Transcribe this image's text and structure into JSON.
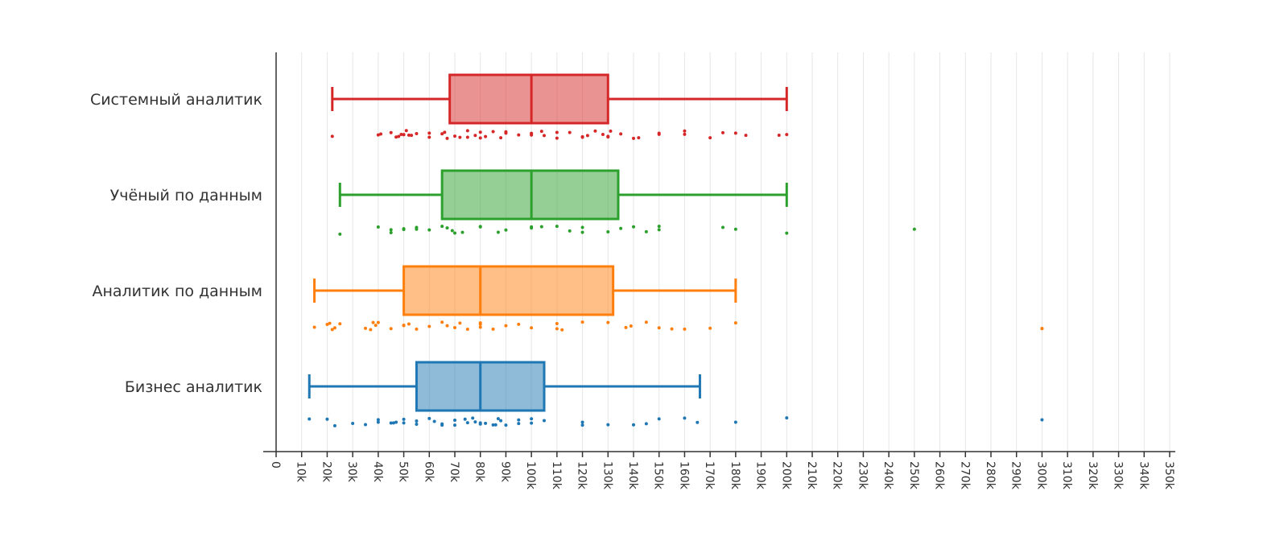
{
  "chart_data": {
    "type": "box",
    "orientation": "horizontal",
    "title": "",
    "xlabel": "",
    "ylabel": "",
    "xlim": [
      0,
      350000
    ],
    "x_ticks": [
      0,
      10000,
      20000,
      30000,
      40000,
      50000,
      60000,
      70000,
      80000,
      90000,
      100000,
      110000,
      120000,
      130000,
      140000,
      150000,
      160000,
      170000,
      180000,
      190000,
      200000,
      210000,
      220000,
      230000,
      240000,
      250000,
      260000,
      270000,
      280000,
      290000,
      300000,
      310000,
      320000,
      330000,
      340000,
      350000
    ],
    "x_tick_labels": [
      "0",
      "10k",
      "20k",
      "30k",
      "40k",
      "50k",
      "60k",
      "70k",
      "80k",
      "90k",
      "100k",
      "110k",
      "120k",
      "130k",
      "140k",
      "150k",
      "160k",
      "170k",
      "180k",
      "190k",
      "200k",
      "210k",
      "220k",
      "230k",
      "240k",
      "250k",
      "260k",
      "270k",
      "280k",
      "290k",
      "300k",
      "310k",
      "320k",
      "330k",
      "340k",
      "350k"
    ],
    "grid": "vertical",
    "series": [
      {
        "name": "Системный аналитик",
        "color": "#d62728",
        "whisker_low": 22000,
        "q1": 68000,
        "median": 100000,
        "q3": 130000,
        "whisker_high": 200000,
        "points": [
          22000,
          40000,
          41000,
          45000,
          47000,
          48000,
          49000,
          50000,
          50000,
          51000,
          52000,
          53000,
          55000,
          60000,
          60000,
          65000,
          66000,
          67000,
          70000,
          72000,
          75000,
          75000,
          78000,
          80000,
          80000,
          82000,
          85000,
          88000,
          90000,
          90000,
          95000,
          100000,
          100000,
          100000,
          104000,
          105000,
          110000,
          110000,
          115000,
          120000,
          120000,
          122000,
          125000,
          128000,
          130000,
          130000,
          131000,
          135000,
          140000,
          142000,
          150000,
          150000,
          160000,
          160000,
          170000,
          175000,
          180000,
          184000,
          197000,
          200000
        ]
      },
      {
        "name": "Учёный по данным",
        "color": "#2ca02c",
        "whisker_low": 25000,
        "q1": 65000,
        "median": 100000,
        "q3": 134000,
        "whisker_high": 200000,
        "points": [
          25000,
          40000,
          45000,
          45000,
          50000,
          50000,
          55000,
          55000,
          60000,
          65000,
          67000,
          69000,
          70000,
          73000,
          80000,
          80000,
          87000,
          90000,
          100000,
          100000,
          104000,
          110000,
          115000,
          120000,
          120000,
          130000,
          135000,
          140000,
          145000,
          150000,
          150000,
          175000,
          180000,
          200000,
          250000
        ]
      },
      {
        "name": "Аналитик по данным",
        "color": "#ff7f0e",
        "whisker_low": 15000,
        "q1": 50000,
        "median": 80000,
        "q3": 132000,
        "whisker_high": 180000,
        "points": [
          15000,
          20000,
          21000,
          22000,
          23000,
          25000,
          35000,
          37000,
          38000,
          39000,
          40000,
          45000,
          50000,
          50000,
          52000,
          55000,
          60000,
          65000,
          67000,
          70000,
          72000,
          75000,
          80000,
          80000,
          80000,
          85000,
          90000,
          95000,
          100000,
          110000,
          110000,
          112000,
          120000,
          130000,
          137000,
          139000,
          145000,
          150000,
          155000,
          160000,
          170000,
          180000,
          300000,
          300000
        ]
      },
      {
        "name": "Бизнес аналитик",
        "color": "#1f77b4",
        "whisker_low": 13000,
        "q1": 55000,
        "median": 80000,
        "q3": 105000,
        "whisker_high": 166000,
        "points": [
          13000,
          20000,
          23000,
          30000,
          35000,
          40000,
          40000,
          45000,
          46000,
          47000,
          50000,
          50000,
          55000,
          55000,
          60000,
          62000,
          65000,
          65000,
          70000,
          70000,
          74000,
          75000,
          77000,
          78000,
          80000,
          80000,
          82000,
          85000,
          86000,
          87000,
          88000,
          90000,
          95000,
          95000,
          100000,
          100000,
          105000,
          120000,
          120000,
          130000,
          140000,
          145000,
          150000,
          160000,
          165000,
          180000,
          200000,
          300000
        ]
      }
    ]
  }
}
